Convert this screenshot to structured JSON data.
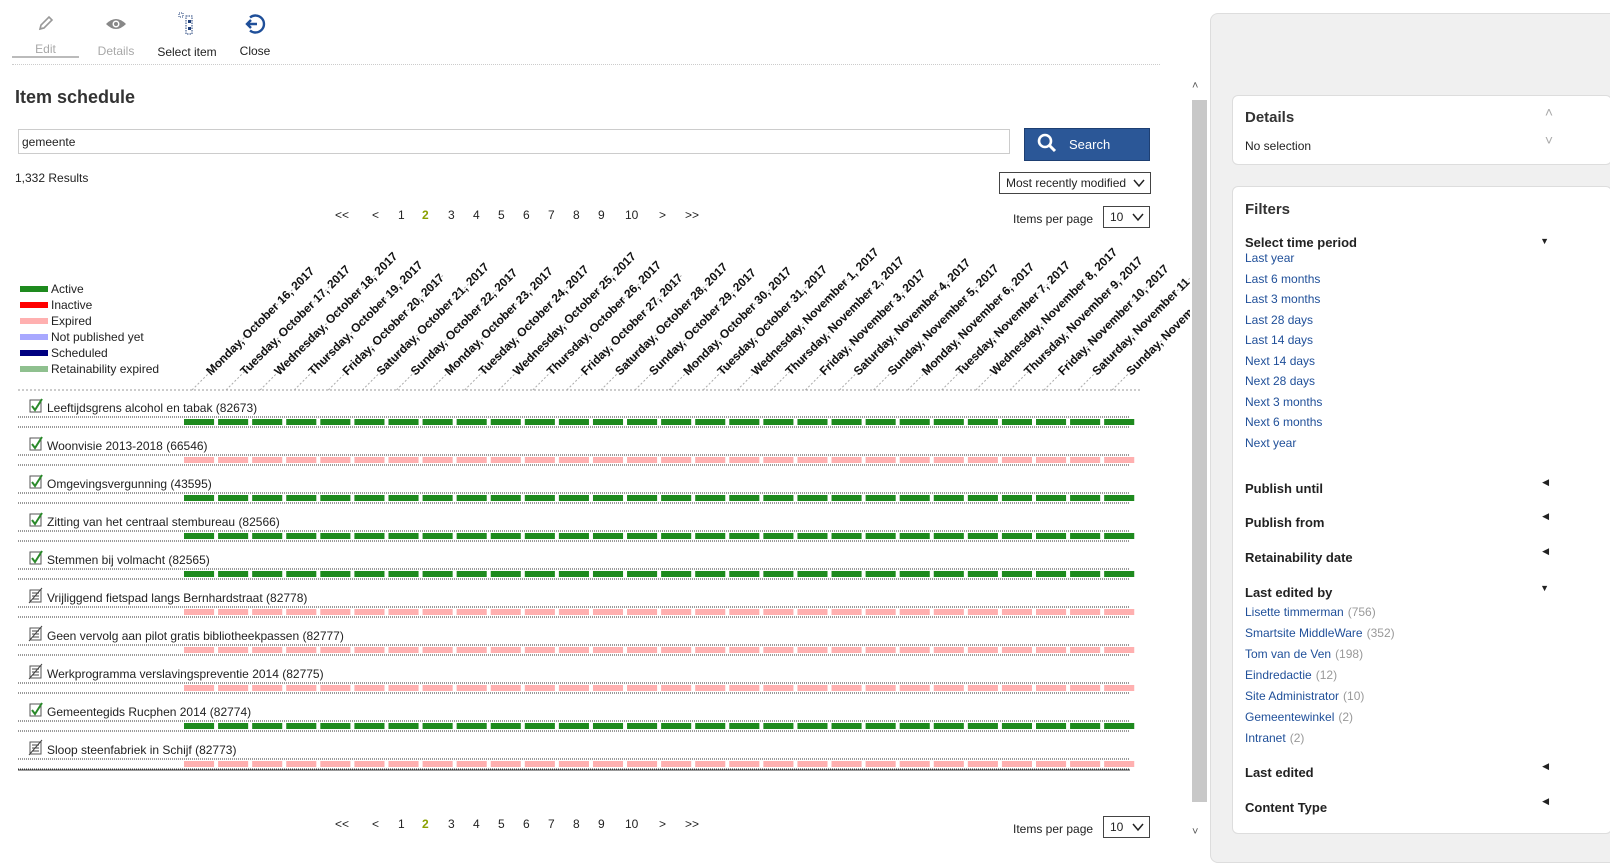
{
  "toolbar": {
    "edit": {
      "label": "Edit",
      "icon": "pencil-icon",
      "enabled": false
    },
    "details": {
      "label": "Details",
      "icon": "eye-icon",
      "enabled": false
    },
    "select_item": {
      "label": "Select item",
      "icon": "select-item-icon",
      "enabled": true
    },
    "close": {
      "label": "Close",
      "icon": "close-circle-icon",
      "enabled": true
    }
  },
  "page_title": "Item schedule",
  "search": {
    "value": "gemeente",
    "button_label": "Search"
  },
  "results_count": "1,332 Results",
  "sort": {
    "selected": "Most recently modified"
  },
  "pagination": {
    "first": "<<",
    "prev": "<",
    "pages": [
      "1",
      "2",
      "3",
      "4",
      "5",
      "6",
      "7",
      "8",
      "9",
      "10"
    ],
    "current": "2",
    "next": ">",
    "last": ">>",
    "items_per_page_label": "Items per page",
    "items_per_page": "10"
  },
  "legend": [
    {
      "label": "Active",
      "color": "#1e8a1e"
    },
    {
      "label": "Inactive",
      "color": "#ff0000"
    },
    {
      "label": "Expired",
      "color": "#ffb0b0"
    },
    {
      "label": "Not published yet",
      "color": "#a8a8ff"
    },
    {
      "label": "Scheduled",
      "color": "#000080"
    },
    {
      "label": "Retainability expired",
      "color": "#8fc08f"
    }
  ],
  "dates": [
    "Monday, October 16, 2017",
    "Tuesday, October 17, 2017",
    "Wednesday, October 18, 2017",
    "Thursday, October 19, 2017",
    "Friday, October 20, 2017",
    "Saturday, October 21, 2017",
    "Sunday, October 22, 2017",
    "Monday, October 23, 2017",
    "Tuesday, October 24, 2017",
    "Wednesday, October 25, 2017",
    "Thursday, October 26, 2017",
    "Friday, October 27, 2017",
    "Saturday, October 28, 2017",
    "Sunday, October 29, 2017",
    "Monday, October 30, 2017",
    "Tuesday, October 31, 2017",
    "Wednesday, November 1, 2017",
    "Thursday, November 2, 2017",
    "Friday, November 3, 2017",
    "Saturday, November 4, 2017",
    "Sunday, November 5, 2017",
    "Monday, November 6, 2017",
    "Tuesday, November 7, 2017",
    "Wednesday, November 8, 2017",
    "Thursday, November 9, 2017",
    "Friday, November 10, 2017",
    "Saturday, November 11",
    "Sunday, Novem"
  ],
  "items": [
    {
      "title": "Leeftijdsgrens alcohol en tabak (82673)",
      "icon": "published-check-icon",
      "status": "Active"
    },
    {
      "title": "Woonvisie 2013-2018 (66546)",
      "icon": "published-check-icon",
      "status": "Expired"
    },
    {
      "title": "Omgevingsvergunning (43595)",
      "icon": "published-check-icon",
      "status": "Active"
    },
    {
      "title": "Zitting van het centraal stembureau (82566)",
      "icon": "published-check-icon",
      "status": "Active"
    },
    {
      "title": "Stemmen bij volmacht (82565)",
      "icon": "published-check-icon",
      "status": "Active"
    },
    {
      "title": "Vrijliggend fietspad langs Bernhardstraat (82778)",
      "icon": "unpublished-doc-icon",
      "status": "Expired"
    },
    {
      "title": "Geen vervolg aan pilot gratis bibliotheekpassen (82777)",
      "icon": "unpublished-doc-icon",
      "status": "Expired"
    },
    {
      "title": "Werkprogramma verslavingspreventie 2014 (82775)",
      "icon": "unpublished-doc-icon",
      "status": "Expired"
    },
    {
      "title": "Gemeentegids Rucphen 2014 (82774)",
      "icon": "published-check-icon",
      "status": "Active"
    },
    {
      "title": "Sloop steenfabriek in Schijf (82773)",
      "icon": "unpublished-doc-icon",
      "status": "Expired"
    }
  ],
  "details_panel": {
    "title": "Details",
    "text": "No selection"
  },
  "filters": {
    "title": "Filters",
    "time_period": {
      "title": "Select time period",
      "options": [
        "Last year",
        "Last 6 months",
        "Last 3 months",
        "Last 28 days",
        "Last 14 days",
        "Next 14 days",
        "Next 28 days",
        "Next 3 months",
        "Next 6 months",
        "Next year"
      ]
    },
    "publish_until": "Publish until",
    "publish_from": "Publish from",
    "retainability_date": "Retainability date",
    "last_edited_by": {
      "title": "Last edited by",
      "users": [
        {
          "name": "Lisette timmerman",
          "count": "(756)"
        },
        {
          "name": "Smartsite MiddleWare",
          "count": "(352)"
        },
        {
          "name": "Tom van de Ven",
          "count": "(198)"
        },
        {
          "name": "Eindredactie",
          "count": "(12)"
        },
        {
          "name": "Site Administrator",
          "count": "(10)"
        },
        {
          "name": "Gemeentewinkel",
          "count": "(2)"
        },
        {
          "name": "Intranet",
          "count": "(2)"
        }
      ]
    },
    "last_edited": "Last edited",
    "content_type": "Content Type"
  }
}
